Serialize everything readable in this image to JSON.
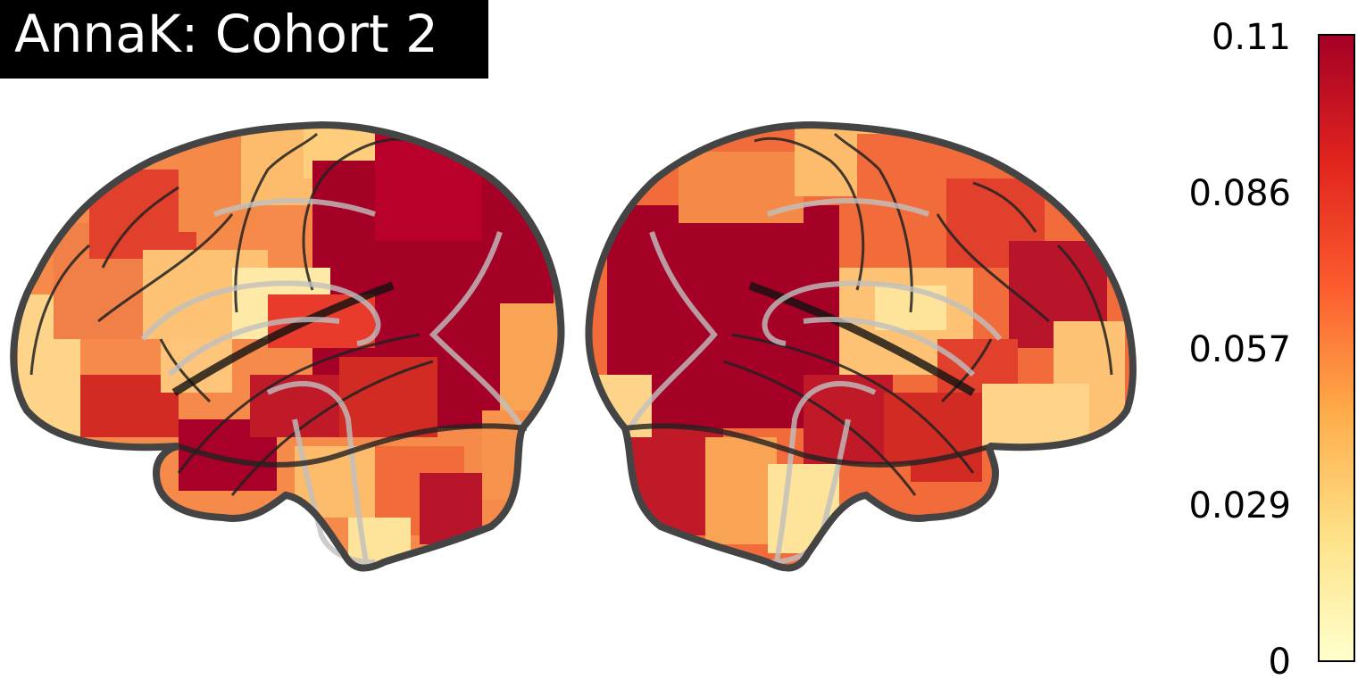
{
  "title": "AnnaK: Cohort 2",
  "colorbar": {
    "ticks": [
      "0.11",
      "0.086",
      "0.057",
      "0.029",
      "0"
    ],
    "min": 0,
    "max": 0.11,
    "colormap": [
      "#ffffcc",
      "#fee187",
      "#feab49",
      "#fc5b2e",
      "#e0241e",
      "#a50026"
    ]
  },
  "views": [
    "left-lateral",
    "right-lateral"
  ]
}
